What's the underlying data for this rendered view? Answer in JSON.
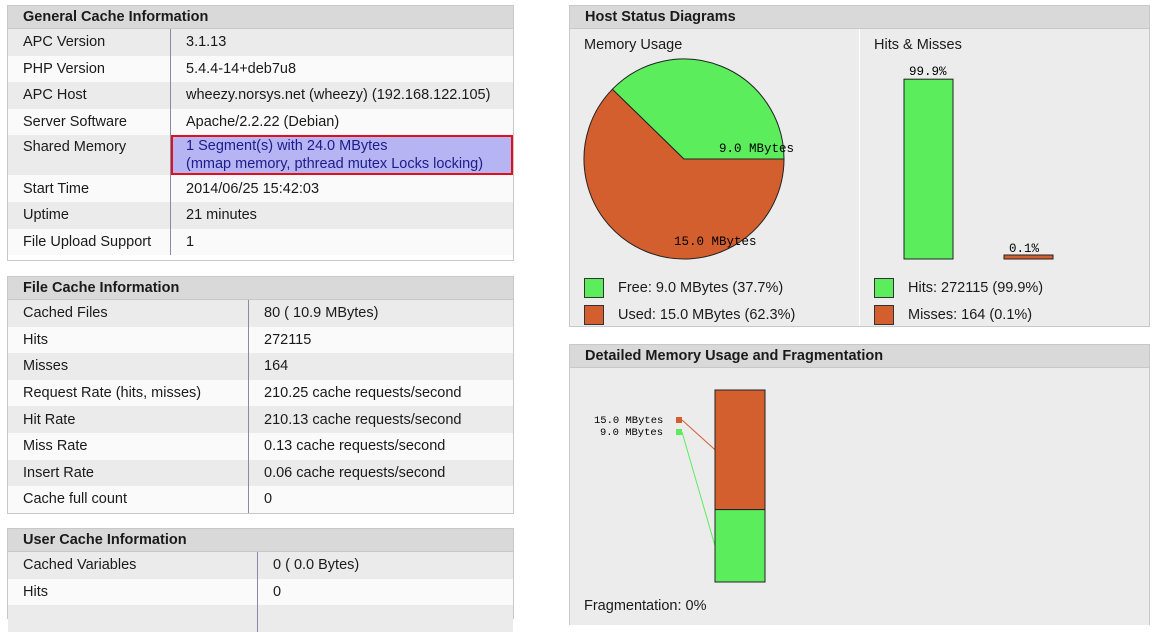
{
  "colors": {
    "free": "#5ced5c",
    "used": "#d35f2e"
  },
  "general": {
    "title": "General Cache Information",
    "rows": [
      {
        "key": "APC Version",
        "value": "3.1.13"
      },
      {
        "key": "PHP Version",
        "value": "5.4.4-14+deb7u8"
      },
      {
        "key": "APC Host",
        "value": "wheezy.norsys.net (wheezy) (192.168.122.105)"
      },
      {
        "key": "Server Software",
        "value": "Apache/2.2.22 (Debian)"
      },
      {
        "key": "Shared Memory",
        "value": "1 Segment(s) with 24.0 MBytes",
        "value2": "(mmap memory, pthread mutex Locks locking)"
      },
      {
        "key": "Start Time",
        "value": "2014/06/25 15:42:03"
      },
      {
        "key": "Uptime",
        "value": "21 minutes"
      },
      {
        "key": "File Upload Support",
        "value": "1"
      }
    ]
  },
  "file_cache": {
    "title": "File Cache Information",
    "rows": [
      {
        "key": "Cached Files",
        "value": "80 ( 10.9 MBytes)"
      },
      {
        "key": "Hits",
        "value": "272115"
      },
      {
        "key": "Misses",
        "value": "164"
      },
      {
        "key": "Request Rate (hits, misses)",
        "value": "210.25 cache requests/second"
      },
      {
        "key": "Hit Rate",
        "value": "210.13 cache requests/second"
      },
      {
        "key": "Miss Rate",
        "value": "0.13 cache requests/second"
      },
      {
        "key": "Insert Rate",
        "value": "0.06 cache requests/second"
      },
      {
        "key": "Cache full count",
        "value": "0"
      }
    ]
  },
  "user_cache": {
    "title": "User Cache Information",
    "rows": [
      {
        "key": "Cached Variables",
        "value": "0 ( 0.0 Bytes)"
      },
      {
        "key": "Hits",
        "value": "0"
      }
    ]
  },
  "host_status": {
    "title": "Host Status Diagrams",
    "memory": {
      "label": "Memory Usage",
      "free_label": "9.0 MBytes",
      "used_label": "15.0 MBytes",
      "free_fraction": 0.377,
      "legend_free": "Free: 9.0 MBytes (37.7%)",
      "legend_used": "Used: 15.0 MBytes (62.3%)"
    },
    "hits": {
      "label": "Hits & Misses",
      "hits_pct_label": "99.9%",
      "misses_pct_label": "0.1%",
      "hits_fraction": 0.999,
      "misses_fraction": 0.001,
      "legend_hits": "Hits: 272115 (99.9%)",
      "legend_misses": "Misses: 164 (0.1%)"
    }
  },
  "fragmentation": {
    "title": "Detailed Memory Usage and Fragmentation",
    "used_label": "15.0 MBytes",
    "free_label": "9.0 MBytes",
    "used_fraction": 0.623,
    "footer": "Fragmentation: 0%"
  }
}
